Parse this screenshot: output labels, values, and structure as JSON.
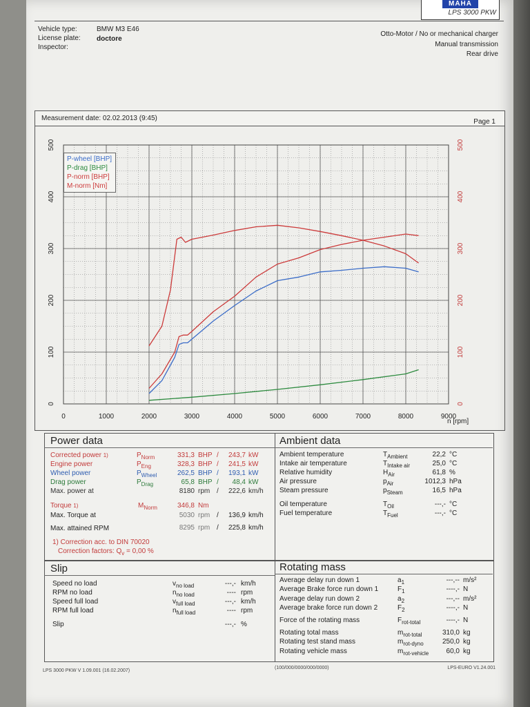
{
  "brand": {
    "logo_text": "MAHA",
    "model": "LPS 3000 PKW"
  },
  "header": {
    "vehicle_type_label": "Vehicle type:",
    "vehicle_type": "BMW M3 E46",
    "license_plate_label": "License plate:",
    "license_plate": "doctore",
    "inspector_label": "Inspector:",
    "engine_info": "Otto-Motor / No or mechanical charger",
    "transmission": "Manual transmission",
    "drive": "Rear drive"
  },
  "measurement": {
    "label": "Measurement date: 02.02.2013 (9:45)",
    "page": "Page 1"
  },
  "chart_data": {
    "type": "line",
    "xlabel": "n [rpm]",
    "xlim": [
      0,
      9000
    ],
    "ylim": [
      0,
      500
    ],
    "x_ticks": [
      "0",
      "1000",
      "2000",
      "3000",
      "4000",
      "5000",
      "6000",
      "7000",
      "8000",
      "9000"
    ],
    "y_ticks_left": [
      "0",
      "100",
      "200",
      "300",
      "400",
      "500"
    ],
    "y_ticks_right": [
      "0",
      "100",
      "200",
      "300",
      "400",
      "500"
    ],
    "grid": true,
    "legend_position": "top-left",
    "series": [
      {
        "name": "P-wheel [BHP]",
        "color": "#3a6cc8",
        "x": [
          2000,
          2300,
          2600,
          2700,
          2800,
          2900,
          3000,
          3500,
          4000,
          4500,
          5000,
          5500,
          6000,
          6500,
          7000,
          7500,
          8000,
          8300
        ],
        "y": [
          20,
          45,
          90,
          115,
          118,
          118,
          125,
          160,
          190,
          218,
          238,
          245,
          255,
          258,
          262,
          265,
          262,
          255
        ]
      },
      {
        "name": "P-drag [BHP]",
        "color": "#2c8a3e",
        "x": [
          2000,
          3000,
          4000,
          5000,
          6000,
          7000,
          8000,
          8300
        ],
        "y": [
          7,
          13,
          20,
          28,
          37,
          47,
          58,
          66
        ]
      },
      {
        "name": "P-norm [BHP]",
        "color": "#cc3a3a",
        "x": [
          2000,
          2300,
          2600,
          2700,
          2800,
          2900,
          3000,
          3500,
          4000,
          4500,
          5000,
          5500,
          6000,
          6500,
          7000,
          7500,
          8000,
          8300
        ],
        "y": [
          30,
          58,
          100,
          130,
          133,
          133,
          140,
          178,
          208,
          245,
          270,
          282,
          298,
          308,
          316,
          322,
          328,
          325
        ]
      },
      {
        "name": "M-norm [Nm]",
        "color": "#cc3a3a",
        "x": [
          2000,
          2300,
          2500,
          2650,
          2750,
          2850,
          3000,
          3500,
          4000,
          4500,
          5000,
          5500,
          6000,
          6500,
          7000,
          7500,
          8000,
          8300
        ],
        "y": [
          112,
          150,
          220,
          318,
          322,
          312,
          318,
          326,
          335,
          342,
          345,
          340,
          333,
          325,
          316,
          305,
          290,
          272
        ]
      }
    ]
  },
  "power_data": {
    "title": "Power data",
    "rows": [
      {
        "label": "Corrected power",
        "sup": "1)",
        "sym": "P",
        "sub": "Norm",
        "v1": "331,3",
        "u1": "BHP",
        "sep": "/",
        "v2": "243,7",
        "u2": "kW",
        "color": "#c23a3a"
      },
      {
        "label": "Engine power",
        "sup": "",
        "sym": "P",
        "sub": "Eng",
        "v1": "328,3",
        "u1": "BHP",
        "sep": "/",
        "v2": "241,5",
        "u2": "kW",
        "color": "#c23a3a"
      },
      {
        "label": "Wheel power",
        "sup": "",
        "sym": "P",
        "sub": "Wheel",
        "v1": "262,5",
        "u1": "BHP",
        "sep": "/",
        "v2": "193,1",
        "u2": "kW",
        "color": "#2f5db0"
      },
      {
        "label": "Drag power",
        "sup": "",
        "sym": "P",
        "sub": "Drag",
        "v1": "65,8",
        "u1": "BHP",
        "sep": "/",
        "v2": "48,4",
        "u2": "kW",
        "color": "#2c7a3a"
      },
      {
        "label": "Max. power at",
        "sup": "",
        "sym": "",
        "sub": "",
        "v1": "8180",
        "u1": "rpm",
        "sep": "/",
        "v2": "222,6",
        "u2": "km/h",
        "color": "#333333"
      }
    ],
    "torque": {
      "label": "Torque",
      "sup": "1)",
      "sym": "M",
      "sub": "Norm",
      "v1": "346,8",
      "u1": "Nm"
    },
    "max_torque": {
      "label": "Max. Torque at",
      "v1": "5030",
      "u1": "rpm",
      "sep": "/",
      "v2": "136,9",
      "u2": "km/h"
    },
    "max_rpm": {
      "label": "Max. attained RPM",
      "v1": "8295",
      "u1": "rpm",
      "sep": "/",
      "v2": "225,8",
      "u2": "km/h"
    },
    "correction_note": "1) Correction acc. to DIN 70020",
    "correction_factors": "Correction factors: Q",
    "correction_sub": "v",
    "correction_value": "= 0,00 %"
  },
  "ambient_data": {
    "title": "Ambient data",
    "rows": [
      {
        "label": "Ambient temperature",
        "sym": "T",
        "sub": "Ambient",
        "value": "22,2",
        "unit": "°C"
      },
      {
        "label": "Intake air temperature",
        "sym": "T",
        "sub": "Intake air",
        "value": "25,0",
        "unit": "°C"
      },
      {
        "label": "Relative humidity",
        "sym": "H",
        "sub": "Air",
        "value": "61,8",
        "unit": "%"
      },
      {
        "label": "Air pressure",
        "sym": "p",
        "sub": "Air",
        "value": "1012,3",
        "unit": "hPa"
      },
      {
        "label": "Steam pressure",
        "sym": "p",
        "sub": "Steam",
        "value": "16,5",
        "unit": "hPa"
      },
      {
        "label": "Oil temperature",
        "sym": "T",
        "sub": "Oil",
        "value": "---,-",
        "unit": "°C"
      },
      {
        "label": "Fuel temperature",
        "sym": "T",
        "sub": "Fuel",
        "value": "---,-",
        "unit": "°C"
      }
    ]
  },
  "slip": {
    "title": "Slip",
    "rows": [
      {
        "label": "Speed no load",
        "sym": "v",
        "sub": "no load",
        "value": "---,-",
        "unit": "km/h"
      },
      {
        "label": "RPM no load",
        "sym": "n",
        "sub": "no load",
        "value": "----",
        "unit": "rpm"
      },
      {
        "label": "Speed full load",
        "sym": "v",
        "sub": "full load",
        "value": "---,-",
        "unit": "km/h"
      },
      {
        "label": "RPM full load",
        "sym": "n",
        "sub": "full load",
        "value": "----",
        "unit": "rpm"
      },
      {
        "label": "Slip",
        "sym": "",
        "sub": "",
        "value": "---,-",
        "unit": "%"
      }
    ]
  },
  "rotating_mass": {
    "title": "Rotating mass",
    "rows": [
      {
        "label": "Average delay run down 1",
        "sym": "a",
        "sub": "1",
        "value": "---,--",
        "unit": "m/s²"
      },
      {
        "label": "Average Brake force run down 1",
        "sym": "F",
        "sub": "1",
        "value": "----,-",
        "unit": "N"
      },
      {
        "label": "Average delay run down 2",
        "sym": "a",
        "sub": "2",
        "value": "---,--",
        "unit": "m/s²"
      },
      {
        "label": "Average brake force run down 2",
        "sym": "F",
        "sub": "2",
        "value": "----,-",
        "unit": "N"
      },
      {
        "label": "Force of the rotating mass",
        "sym": "F",
        "sub": "rot-total",
        "value": "----,-",
        "unit": "N"
      },
      {
        "label": "Rotating total mass",
        "sym": "m",
        "sub": "rot-total",
        "value": "310,0",
        "unit": "kg"
      },
      {
        "label": "Rotating test stand mass",
        "sym": "m",
        "sub": "rot-dyno",
        "value": "250,0",
        "unit": "kg"
      },
      {
        "label": "Rotating vehicle mass",
        "sym": "m",
        "sub": "rot-vehicle",
        "value": "60,0",
        "unit": "kg"
      }
    ]
  },
  "footer": {
    "left": "LPS 3000 PKW V 1.09.001 (16.02.2007)",
    "center": "(100/000/0000/000/0000)",
    "right": "LPS-EURO V1.24.001"
  }
}
